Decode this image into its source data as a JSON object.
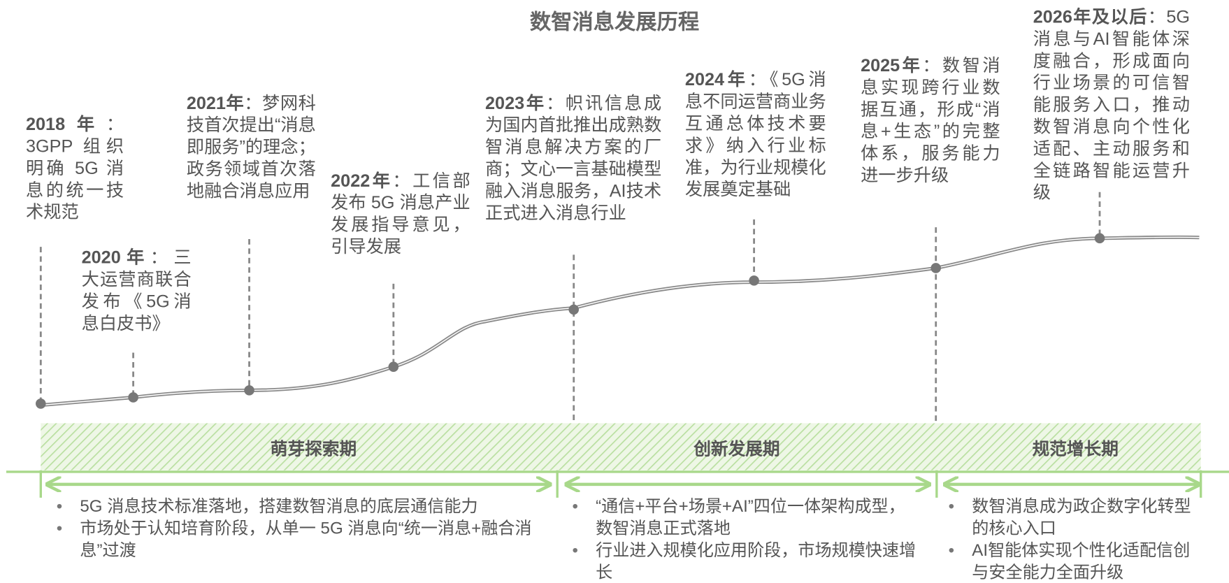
{
  "title": "数智消息发展历程",
  "milestones": [
    {
      "year": "2018年",
      "text": "：3GPP 组织明确 5G 消息的统一技术规范"
    },
    {
      "year": "2020年",
      "text": "：三大运营商联合发布《5G消息白皮书》"
    },
    {
      "year": "2021年",
      "text": "：梦网科技首次提出“消息即服务”的理念；政务领域首次落地融合消息应用"
    },
    {
      "year": "2022年",
      "text": "：工信部发布 5G 消息产业发展指导意见，引导发展"
    },
    {
      "year": "2023年",
      "text": "：帜讯信息成为国内首批推出成熟数智消息解决方案的厂商；文心一言基础模型融入消息服务，AI技术正式进入消息行业"
    },
    {
      "year": "2024年",
      "text": "：《5G消息不同运营商业务互通总体技术要求》纳入行业标准，为行业规模化发展奠定基础"
    },
    {
      "year": "2025年",
      "text": "：数智消息实现跨行业数据互通，形成“消息+生态”的完整体系，服务能力进一步升级"
    },
    {
      "year": "2026年及以后",
      "text": "：5G消息与AI智能体深度融合，形成面向行业场景的可信智能服务入口，推动数智消息向个性化适配、主动服务和全链路智能运营升级"
    }
  ],
  "phases": [
    {
      "name": "萌芽探索期",
      "points": [
        "5G 消息技术标准落地，搭建数智消息的底层通信能力",
        "市场处于认知培育阶段，从单一 5G 消息向“统一消息+融合消息”过渡"
      ]
    },
    {
      "name": "创新发展期",
      "points": [
        "“通信+平台+场景+AI”四位一体架构成型，数智消息正式落地",
        "行业进入规模化应用阶段，市场规模快速增长"
      ]
    },
    {
      "name": "规范增长期",
      "points": [
        "数智消息成为政企数字化转型的核心入口",
        "AI智能体实现个性化适配信创与安全能力全面升级"
      ]
    }
  ]
}
